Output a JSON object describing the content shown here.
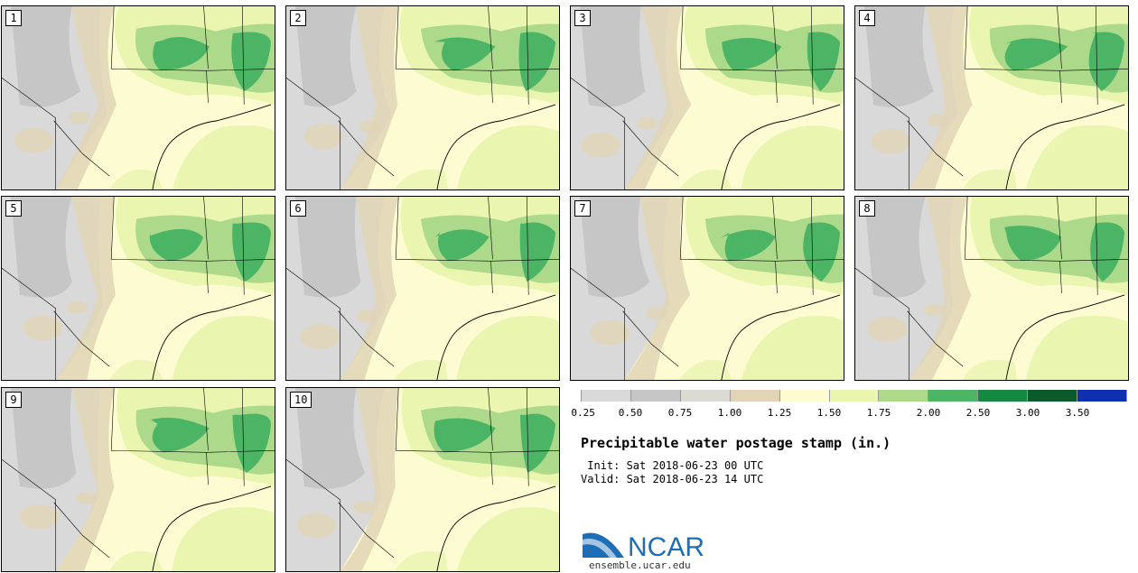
{
  "panels": [
    "1",
    "2",
    "3",
    "4",
    "5",
    "6",
    "7",
    "8",
    "9",
    "10"
  ],
  "colorbar": {
    "labels": [
      "0.25",
      "0.50",
      "0.75",
      "1.00",
      "1.25",
      "1.50",
      "1.75",
      "2.00",
      "2.50",
      "3.00",
      "3.50"
    ],
    "colors": [
      "#d9d9d9",
      "#c6c6c6",
      "#dcdad3",
      "#e1d5b6",
      "#fdfbd2",
      "#eaf5b0",
      "#acd98a",
      "#4bb465",
      "#15893f",
      "#0b5a2a",
      "#0d2fb0"
    ]
  },
  "title": "Precipitable water postage stamp (in.)",
  "init": " Init: Sat 2018-06-23 00 UTC",
  "valid": "Valid: Sat 2018-06-23 14 UTC",
  "logo": {
    "text": "NCAR",
    "colors": {
      "swoosh": "#1c6fb7",
      "text": "#1c6fb7"
    }
  },
  "website": "ensemble.ucar.edu"
}
